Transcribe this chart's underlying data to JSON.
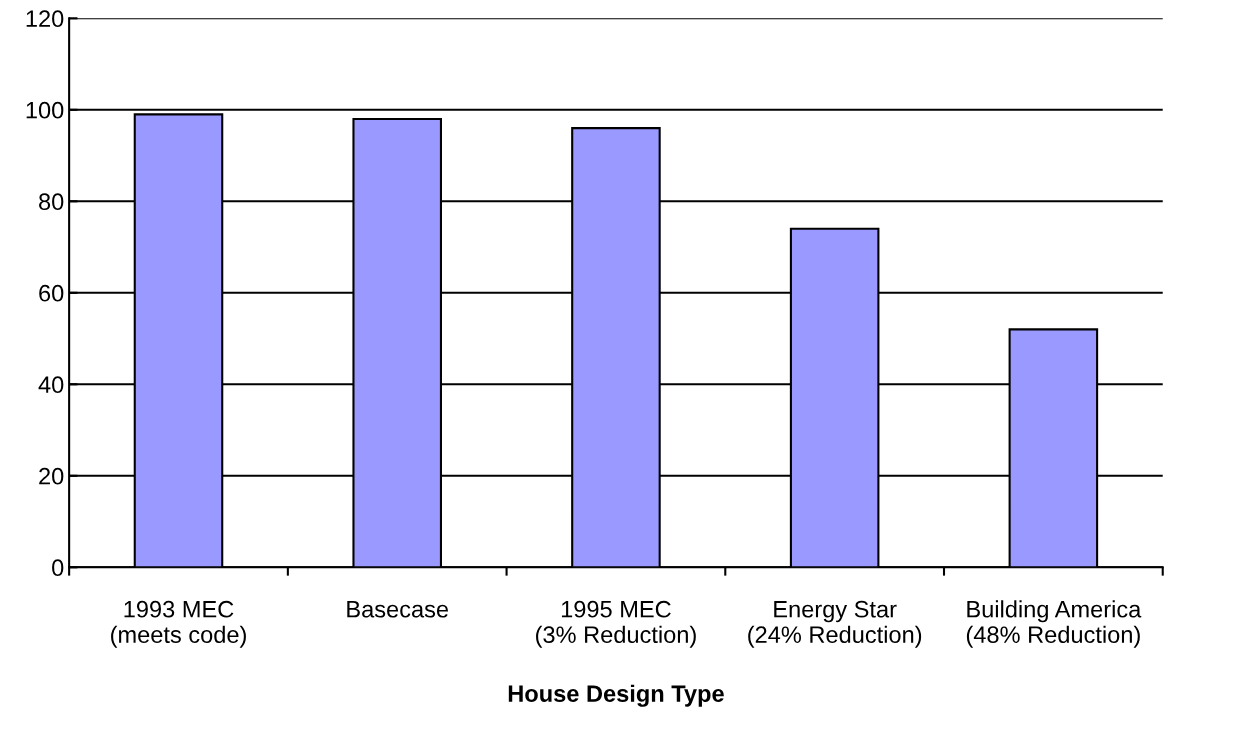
{
  "chart_data": {
    "type": "bar",
    "categories": [
      "1993 MEC\n(meets code)",
      "Basecase",
      "1995 MEC\n(3% Reduction)",
      "Energy Star\n(24% Reduction)",
      "Building America\n(48% Reduction)"
    ],
    "values": [
      99,
      98,
      96,
      74,
      52
    ],
    "color": "#9999ff",
    "xlabel": "House Design Type",
    "ylim": [
      0,
      120
    ],
    "yticks": [
      0,
      20,
      40,
      60,
      80,
      100,
      120
    ],
    "grid": "y",
    "legend": false
  }
}
